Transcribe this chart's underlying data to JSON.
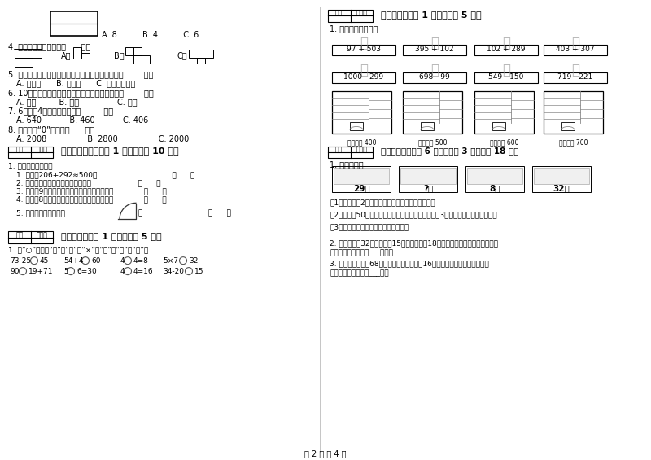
{
  "bg_color": "#ffffff",
  "text_color": "#000000",
  "page_num": "第 2 页 八 4 页",
  "expressions_row1": [
    "97 + 503",
    "395 + 102",
    "102 + 289",
    "403 + 307"
  ],
  "expressions_row2": [
    "1000 - 299",
    "698 - 99",
    "549 - 150",
    "719 - 221"
  ],
  "labels_row": [
    "得数接近 400",
    "得数大约 500",
    "得数接近 600",
    "得数大约 700"
  ]
}
